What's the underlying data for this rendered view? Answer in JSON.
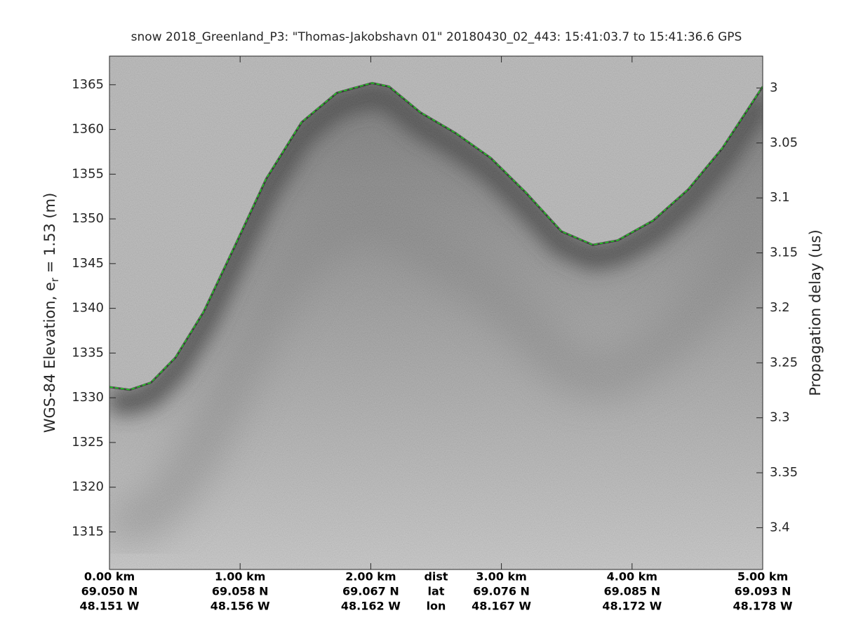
{
  "chart_data": {
    "type": "echogram",
    "title": "snow 2018_Greenland_P3: \"Thomas-Jakobshavn 01\"  20180430_02_443: 15:41:03.7 to 15:41:36.6 GPS",
    "ylabel": {
      "prefix": "WGS-84 Elevation, e",
      "subscript": "r",
      "suffix": " = 1.53 (m)"
    },
    "y2label": "Propagation delay (us)",
    "xlim": [
      0,
      5
    ],
    "xticks": [
      {
        "value": 0,
        "label": "0.00 km"
      },
      {
        "value": 1,
        "label": "1.00 km"
      },
      {
        "value": 2,
        "label": "2.00 km"
      },
      {
        "value": 3,
        "label": "3.00 km"
      },
      {
        "value": 4,
        "label": "4.00 km"
      },
      {
        "value": 5,
        "label": "5.00 km"
      }
    ],
    "lat": [
      "69.050 N",
      "69.058 N",
      "69.067 N",
      "69.076 N",
      "69.085 N",
      "69.093 N"
    ],
    "lon": [
      "48.151 W",
      "48.156 W",
      "48.162 W",
      "48.167 W",
      "48.172 W",
      "48.178 W"
    ],
    "row_labels": [
      "dist",
      "lat",
      "lon"
    ],
    "ylim": [
      1310.8,
      1368.2
    ],
    "yticks": [
      1315,
      1320,
      1325,
      1330,
      1335,
      1340,
      1345,
      1350,
      1355,
      1360,
      1365
    ],
    "y2lim": [
      3.438,
      2.971
    ],
    "y2ticks": [
      3,
      3.05,
      3.1,
      3.15,
      3.2,
      3.25,
      3.3,
      3.35,
      3.4
    ],
    "series": [
      {
        "name": "surface",
        "color": "#22cc22",
        "x": [
          0,
          0.156,
          0.317,
          0.505,
          0.72,
          0.96,
          1.2,
          1.47,
          1.74,
          2.01,
          2.14,
          2.38,
          2.65,
          2.92,
          3.19,
          3.46,
          3.7,
          3.89,
          4.16,
          4.43,
          4.69,
          5
        ],
        "values": [
          1331.2,
          1330.9,
          1331.7,
          1334.5,
          1339.6,
          1347.0,
          1354.5,
          1360.8,
          1364.1,
          1365.2,
          1364.8,
          1361.9,
          1359.6,
          1356.8,
          1352.9,
          1348.6,
          1347.1,
          1347.6,
          1349.8,
          1353.3,
          1357.9,
          1364.8
        ]
      }
    ]
  }
}
